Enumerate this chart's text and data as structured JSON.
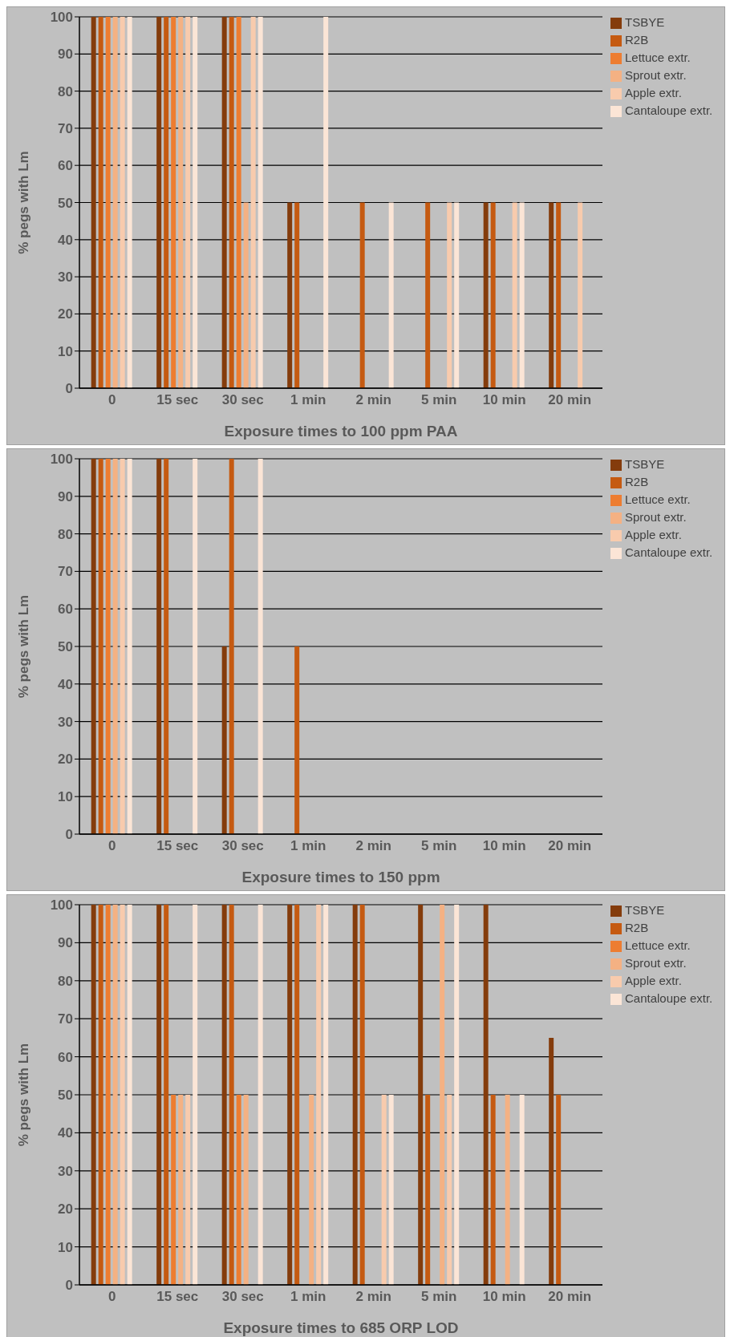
{
  "chart_data": [
    {
      "type": "bar",
      "xlabel": "Exposure times to 100 ppm PAA",
      "ylabel": "% pegs with Lm",
      "categories": [
        "0",
        "15 sec",
        "30 sec",
        "1 min",
        "2 min",
        "5 min",
        "10 min",
        "20 min"
      ],
      "series": [
        {
          "name": "TSBYE",
          "color": "#843c0c",
          "values": [
            100,
            100,
            100,
            50,
            0,
            0,
            50,
            50
          ]
        },
        {
          "name": "R2B",
          "color": "#c55a11",
          "values": [
            100,
            100,
            100,
            50,
            50,
            50,
            50,
            50
          ]
        },
        {
          "name": "Lettuce extr.",
          "color": "#ed7d31",
          "values": [
            100,
            100,
            100,
            0,
            0,
            0,
            0,
            0
          ]
        },
        {
          "name": "Sprout extr.",
          "color": "#f4b183",
          "values": [
            100,
            100,
            50,
            0,
            0,
            0,
            0,
            0
          ]
        },
        {
          "name": "Apple extr.",
          "color": "#f8cbad",
          "values": [
            100,
            100,
            100,
            0,
            0,
            50,
            50,
            50
          ]
        },
        {
          "name": "Cantaloupe extr.",
          "color": "#fbe5d6",
          "values": [
            100,
            100,
            100,
            100,
            50,
            50,
            50,
            0
          ]
        }
      ],
      "ylim": [
        0,
        100
      ],
      "yticks": [
        0,
        10,
        20,
        30,
        40,
        50,
        60,
        70,
        80,
        90,
        100
      ],
      "grid": "y",
      "legend": "top right"
    },
    {
      "type": "bar",
      "xlabel": "Exposure times to 150 ppm",
      "ylabel": "% pegs with Lm",
      "categories": [
        "0",
        "15 sec",
        "30 sec",
        "1 min",
        "2 min",
        "5 min",
        "10 min",
        "20 min"
      ],
      "series": [
        {
          "name": "TSBYE",
          "color": "#843c0c",
          "values": [
            100,
            100,
            50,
            0,
            0,
            0,
            0,
            0
          ]
        },
        {
          "name": "R2B",
          "color": "#c55a11",
          "values": [
            100,
            100,
            100,
            50,
            0,
            0,
            0,
            0
          ]
        },
        {
          "name": "Lettuce extr.",
          "color": "#ed7d31",
          "values": [
            100,
            0,
            0,
            0,
            0,
            0,
            0,
            0
          ]
        },
        {
          "name": "Sprout extr.",
          "color": "#f4b183",
          "values": [
            100,
            0,
            0,
            0,
            0,
            0,
            0,
            0
          ]
        },
        {
          "name": "Apple extr.",
          "color": "#f8cbad",
          "values": [
            100,
            0,
            0,
            0,
            0,
            0,
            0,
            0
          ]
        },
        {
          "name": "Cantaloupe extr.",
          "color": "#fbe5d6",
          "values": [
            100,
            100,
            100,
            0,
            0,
            0,
            0,
            0
          ]
        }
      ],
      "ylim": [
        0,
        100
      ],
      "yticks": [
        0,
        10,
        20,
        30,
        40,
        50,
        60,
        70,
        80,
        90,
        100
      ],
      "grid": "y",
      "legend": "top right"
    },
    {
      "type": "bar",
      "xlabel": "Exposure times to 685 ORP LOD",
      "ylabel": "% pegs with Lm",
      "categories": [
        "0",
        "15 sec",
        "30 sec",
        "1 min",
        "2 min",
        "5 min",
        "10 min",
        "20 min"
      ],
      "series": [
        {
          "name": "TSBYE",
          "color": "#843c0c",
          "values": [
            100,
            100,
            100,
            100,
            100,
            100,
            100,
            65
          ]
        },
        {
          "name": "R2B",
          "color": "#c55a11",
          "values": [
            100,
            100,
            100,
            100,
            100,
            50,
            50,
            50
          ]
        },
        {
          "name": "Lettuce extr.",
          "color": "#ed7d31",
          "values": [
            100,
            50,
            50,
            0,
            0,
            0,
            0,
            0
          ]
        },
        {
          "name": "Sprout extr.",
          "color": "#f4b183",
          "values": [
            100,
            50,
            50,
            50,
            0,
            100,
            50,
            0
          ]
        },
        {
          "name": "Apple extr.",
          "color": "#f8cbad",
          "values": [
            100,
            50,
            0,
            100,
            50,
            50,
            0,
            0
          ]
        },
        {
          "name": "Cantaloupe extr.",
          "color": "#fbe5d6",
          "values": [
            100,
            100,
            100,
            100,
            50,
            100,
            50,
            0
          ]
        }
      ],
      "ylim": [
        0,
        100
      ],
      "yticks": [
        0,
        10,
        20,
        30,
        40,
        50,
        60,
        70,
        80,
        90,
        100
      ],
      "grid": "y",
      "legend": "top right"
    }
  ]
}
